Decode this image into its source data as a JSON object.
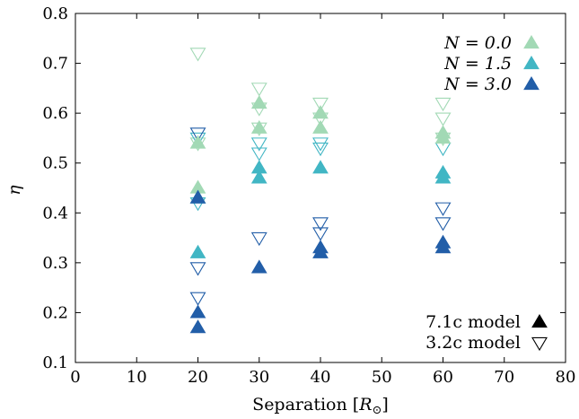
{
  "chart_data": {
    "type": "scatter",
    "xlabel_text": "Separation [",
    "xlabel_symbol": "R",
    "xlabel_sub": "⊙",
    "xlabel_close": "]",
    "ylabel": "η",
    "xlim": [
      0,
      80
    ],
    "ylim": [
      0.1,
      0.8
    ],
    "xticks": [
      "0",
      "10",
      "20",
      "30",
      "40",
      "50",
      "60",
      "70",
      "80"
    ],
    "yticks": [
      "0.1",
      "0.2",
      "0.3",
      "0.4",
      "0.5",
      "0.6",
      "0.7",
      "0.8"
    ],
    "grid": false,
    "legend_top_right": [
      {
        "name": "N = 0.0",
        "color": "#a2d9b5"
      },
      {
        "name": "N = 1.5",
        "color": "#41b6c4"
      },
      {
        "name": "N = 3.0",
        "color": "#225ea8"
      }
    ],
    "legend_bottom_right": [
      {
        "name": "7.1c model",
        "marker": "filled-triangle-up"
      },
      {
        "name": "3.2c model",
        "marker": "open-triangle-down"
      }
    ],
    "series": [
      {
        "N": "0.0",
        "model": "7.1c",
        "color": "#a2d9b5",
        "marker": "filled-triangle-up",
        "points": [
          [
            20,
            0.54
          ],
          [
            20,
            0.45
          ],
          [
            30,
            0.62
          ],
          [
            30,
            0.57
          ],
          [
            40,
            0.6
          ],
          [
            40,
            0.57
          ],
          [
            60,
            0.56
          ],
          [
            60,
            0.55
          ]
        ]
      },
      {
        "N": "1.5",
        "model": "7.1c",
        "color": "#41b6c4",
        "marker": "filled-triangle-up",
        "points": [
          [
            20,
            0.43
          ],
          [
            20,
            0.32
          ],
          [
            30,
            0.49
          ],
          [
            30,
            0.47
          ],
          [
            40,
            0.49
          ],
          [
            60,
            0.48
          ],
          [
            60,
            0.47
          ]
        ]
      },
      {
        "N": "3.0",
        "model": "7.1c",
        "color": "#225ea8",
        "marker": "filled-triangle-up",
        "points": [
          [
            20,
            0.43
          ],
          [
            20,
            0.2
          ],
          [
            20,
            0.17
          ],
          [
            30,
            0.29
          ],
          [
            40,
            0.33
          ],
          [
            40,
            0.32
          ],
          [
            60,
            0.34
          ],
          [
            60,
            0.33
          ]
        ]
      },
      {
        "N": "0.0",
        "model": "3.2c",
        "color": "#a2d9b5",
        "marker": "open-triangle-down",
        "points": [
          [
            20,
            0.72
          ],
          [
            20,
            0.54
          ],
          [
            30,
            0.65
          ],
          [
            30,
            0.61
          ],
          [
            30,
            0.57
          ],
          [
            40,
            0.62
          ],
          [
            40,
            0.59
          ],
          [
            60,
            0.62
          ],
          [
            60,
            0.59
          ],
          [
            60,
            0.55
          ]
        ]
      },
      {
        "N": "1.5",
        "model": "3.2c",
        "color": "#41b6c4",
        "marker": "open-triangle-down",
        "points": [
          [
            20,
            0.55
          ],
          [
            20,
            0.42
          ],
          [
            30,
            0.54
          ],
          [
            30,
            0.52
          ],
          [
            40,
            0.54
          ],
          [
            40,
            0.53
          ],
          [
            60,
            0.53
          ]
        ]
      },
      {
        "N": "3.0",
        "model": "3.2c",
        "color": "#225ea8",
        "marker": "open-triangle-down",
        "points": [
          [
            20,
            0.56
          ],
          [
            20,
            0.29
          ],
          [
            20,
            0.23
          ],
          [
            30,
            0.35
          ],
          [
            40,
            0.38
          ],
          [
            40,
            0.36
          ],
          [
            60,
            0.41
          ],
          [
            60,
            0.38
          ]
        ]
      }
    ]
  }
}
